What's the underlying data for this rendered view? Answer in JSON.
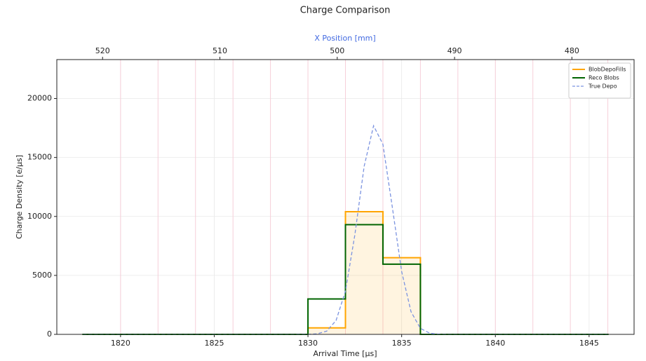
{
  "chart_data": {
    "type": "step",
    "title": "Charge Comparison",
    "x_label": "Arrival Time [μs]",
    "y_label": "Charge Density [e/μs]",
    "x2_label": "X Position [mm]",
    "xlim": [
      1816.6,
      1847.4
    ],
    "xticks": [
      1820,
      1825,
      1830,
      1835,
      1840,
      1845
    ],
    "ylim": [
      0,
      23300
    ],
    "yticks": [
      0,
      5000,
      10000,
      15000,
      20000
    ],
    "x2lim": [
      523.9,
      474.7
    ],
    "x2ticks": [
      520,
      510,
      500,
      490,
      480
    ],
    "bin_lines": [
      1820,
      1822,
      1824,
      1826,
      1828,
      1830,
      1832,
      1834,
      1836,
      1838,
      1840,
      1842,
      1844,
      1846
    ],
    "grid": true,
    "legend": "upper right",
    "series": [
      {
        "name": "BlobDepoFills",
        "color": "#ffa500",
        "style": "step",
        "fill": true,
        "bins": [
          1818,
          1830,
          1832,
          1834,
          1836,
          1846
        ],
        "values": [
          0,
          550,
          10400,
          6500,
          0
        ]
      },
      {
        "name": "Reco Blobs",
        "color": "#006400",
        "style": "step",
        "bins": [
          1818,
          1830,
          1832,
          1834,
          1836,
          1846
        ],
        "values": [
          0,
          3000,
          9300,
          5950,
          0
        ]
      },
      {
        "name": "True Depo",
        "color": "#7b93e0",
        "style": "dashed",
        "x": [
          1818,
          1829,
          1830,
          1830.5,
          1831,
          1831.5,
          1832,
          1832.5,
          1833,
          1833.5,
          1834,
          1834.5,
          1835,
          1835.5,
          1836,
          1836.5,
          1837,
          1837.5,
          1838,
          1846
        ],
        "values": [
          0,
          0,
          6,
          47,
          275,
          1171,
          3666,
          8437,
          14258,
          17690,
          16126,
          10796,
          5305,
          1917,
          507,
          99,
          14,
          1,
          0,
          0
        ]
      }
    ]
  }
}
